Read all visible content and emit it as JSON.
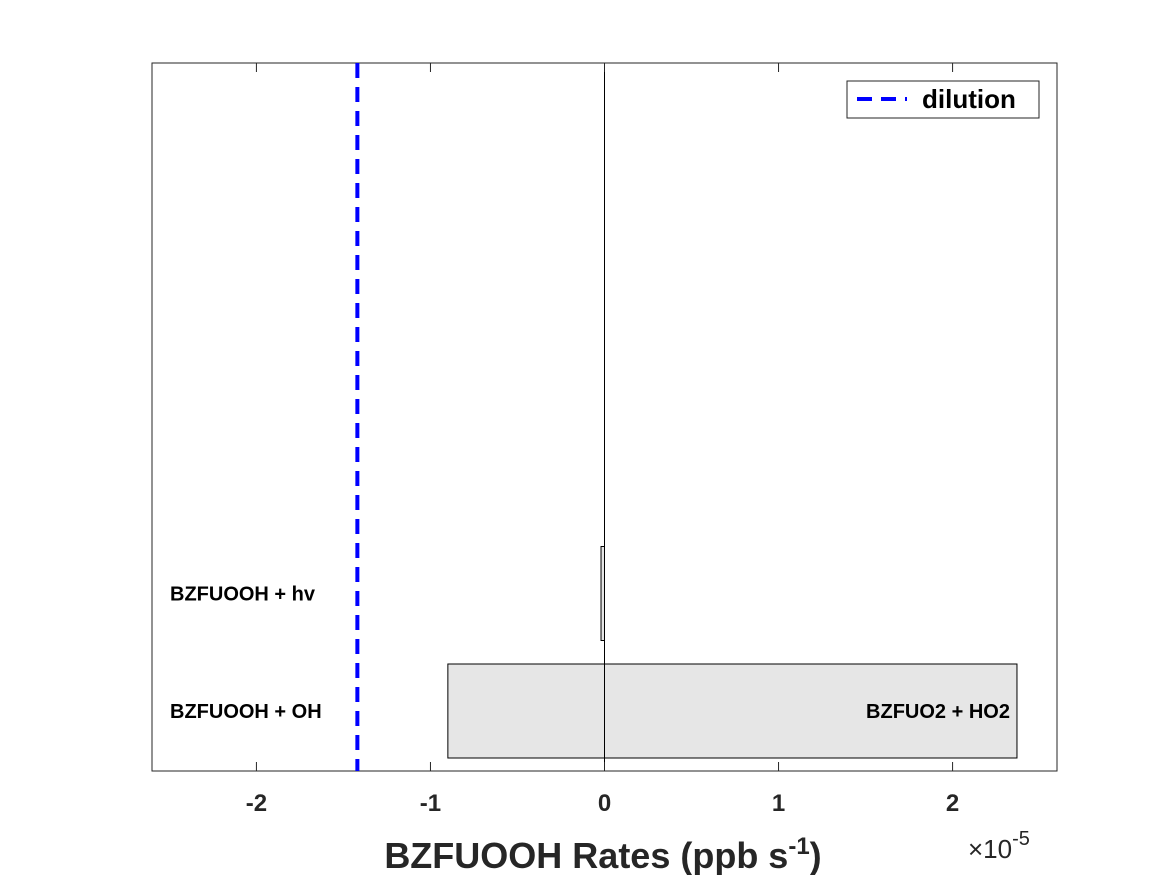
{
  "chart_data": {
    "type": "bar",
    "orientation": "horizontal-stacked",
    "xlabel_main": "BZFUOOH Rates (ppb s",
    "xlabel_sup": "-1",
    "xlabel_end": ")",
    "x_multiplier_prefix": "×10",
    "x_multiplier_exp": "-5",
    "xlim": [
      -2.6,
      2.6
    ],
    "x_ticks": [
      -2,
      -1,
      0,
      1,
      2
    ],
    "x_tick_labels": [
      "-2",
      "-1",
      "0",
      "1",
      "2"
    ],
    "categories": [
      "BZFUOOH + OH",
      "BZFUOOH + hv"
    ],
    "bars": [
      {
        "category": "BZFUOOH + OH",
        "segments": [
          {
            "label": "",
            "from": -0.9,
            "to": 0,
            "color": "#e6e6e6"
          },
          {
            "label": "BZFUO2 + HO2",
            "from": 0,
            "to": 2.37,
            "color": "#e6e6e6"
          }
        ]
      },
      {
        "category": "BZFUOOH + hv",
        "segments": [
          {
            "label": "",
            "from": -0.02,
            "to": 0,
            "color": "#e6e6e6"
          }
        ]
      }
    ],
    "reference_line": {
      "name": "dilution",
      "x": -1.42,
      "color": "#0000ff",
      "style": "dashed"
    },
    "legend": {
      "position": "top-right",
      "entries": [
        "dilution"
      ]
    },
    "grid": false
  }
}
